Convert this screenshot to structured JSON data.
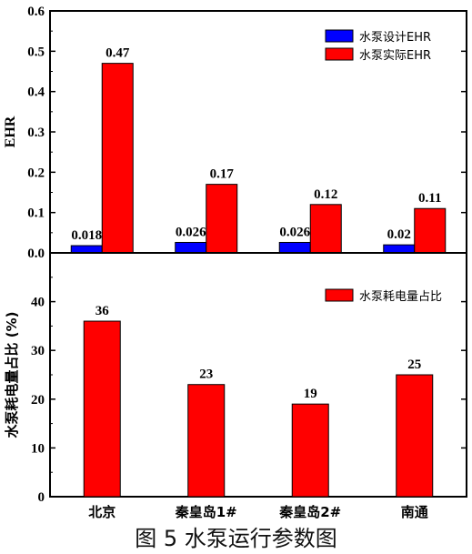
{
  "caption": "图 5 水泵运行参数图",
  "chart_data": [
    {
      "type": "bar",
      "categories": [
        "北京",
        "秦皇岛1#",
        "秦皇岛2#",
        "南通"
      ],
      "ylabel": "EHR",
      "ylim": [
        0,
        0.6
      ],
      "yticks": [
        "0.0",
        "0.1",
        "0.2",
        "0.3",
        "0.4",
        "0.5",
        "0.6"
      ],
      "legend_position": "top-right",
      "series": [
        {
          "name": "水泵设计EHR",
          "color": "#0000ff",
          "values": [
            0.018,
            0.026,
            0.026,
            0.02
          ],
          "labels": [
            "0.018",
            "0.026",
            "0.026",
            "0.02"
          ]
        },
        {
          "name": "水泵实际EHR",
          "color": "#ff0000",
          "values": [
            0.47,
            0.17,
            0.12,
            0.11
          ],
          "labels": [
            "0.47",
            "0.17",
            "0.12",
            "0.11"
          ]
        }
      ]
    },
    {
      "type": "bar",
      "categories": [
        "北京",
        "秦皇岛1#",
        "秦皇岛2#",
        "南通"
      ],
      "ylabel": "水泵耗电量占比 (%)",
      "ylim": [
        0,
        50
      ],
      "yticks": [
        "0",
        "10",
        "20",
        "30",
        "40"
      ],
      "legend_position": "top-right",
      "series": [
        {
          "name": "水泵耗电量占比",
          "color": "#ff0000",
          "values": [
            36,
            23,
            19,
            25
          ],
          "labels": [
            "36",
            "23",
            "19",
            "25"
          ]
        }
      ]
    }
  ]
}
